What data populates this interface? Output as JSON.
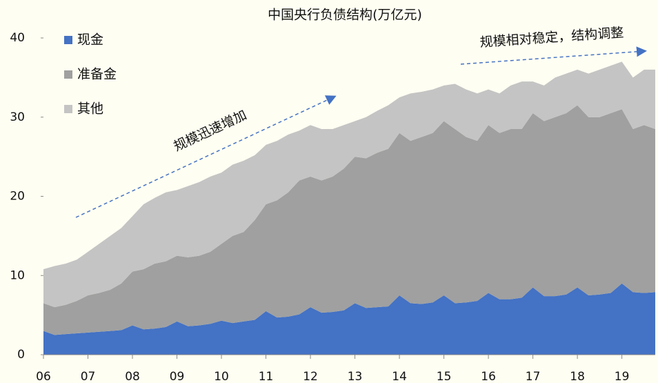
{
  "chart_data": {
    "type": "stacked_area",
    "title": "中国央行负债结构(万亿元)",
    "annotations": [
      "规模迅速增加",
      "规模相对稳定，结构调整"
    ],
    "x": [
      2006,
      2006.25,
      2006.5,
      2006.75,
      2007,
      2007.25,
      2007.5,
      2007.75,
      2008,
      2008.25,
      2008.5,
      2008.75,
      2009,
      2009.25,
      2009.5,
      2009.75,
      2010,
      2010.25,
      2010.5,
      2010.75,
      2011,
      2011.25,
      2011.5,
      2011.75,
      2012,
      2012.25,
      2012.5,
      2012.75,
      2013,
      2013.25,
      2013.5,
      2013.75,
      2014,
      2014.25,
      2014.5,
      2014.75,
      2015,
      2015.25,
      2015.5,
      2015.75,
      2016,
      2016.25,
      2016.5,
      2016.75,
      2017,
      2017.25,
      2017.5,
      2017.75,
      2018,
      2018.25,
      2018.5,
      2018.75,
      2019,
      2019.25,
      2019.5,
      2019.75
    ],
    "series": [
      {
        "name": "现金",
        "color": "#4472c4",
        "values": [
          3.0,
          2.5,
          2.6,
          2.7,
          2.8,
          2.9,
          3.0,
          3.1,
          3.7,
          3.2,
          3.3,
          3.5,
          4.2,
          3.6,
          3.7,
          3.9,
          4.3,
          4.0,
          4.2,
          4.4,
          5.5,
          4.7,
          4.8,
          5.1,
          6.0,
          5.3,
          5.4,
          5.6,
          6.5,
          5.9,
          6.0,
          6.1,
          7.5,
          6.5,
          6.4,
          6.6,
          7.5,
          6.5,
          6.6,
          6.8,
          7.8,
          7.0,
          7.0,
          7.2,
          8.5,
          7.4,
          7.4,
          7.6,
          8.5,
          7.5,
          7.6,
          7.8,
          9.0,
          7.9,
          7.8,
          7.9
        ]
      },
      {
        "name": "准备金",
        "color": "#a0a0a0",
        "values": [
          3.5,
          3.5,
          3.7,
          4.1,
          4.7,
          4.9,
          5.2,
          5.9,
          6.8,
          7.6,
          8.2,
          8.3,
          8.3,
          8.7,
          8.8,
          9.1,
          9.7,
          11.0,
          11.3,
          12.6,
          13.5,
          14.8,
          15.7,
          16.9,
          16.5,
          16.7,
          17.1,
          17.9,
          18.5,
          18.9,
          19.5,
          19.9,
          20.5,
          20.5,
          21.1,
          21.4,
          22.0,
          22.0,
          20.9,
          20.2,
          21.2,
          21.0,
          21.5,
          21.3,
          22.0,
          22.1,
          22.6,
          22.9,
          23.0,
          22.5,
          22.4,
          22.7,
          22.0,
          20.6,
          21.2,
          20.6
        ]
      },
      {
        "name": "其他",
        "color": "#c4c4c4",
        "values": [
          4.3,
          5.2,
          5.2,
          5.2,
          5.5,
          6.2,
          6.8,
          7.0,
          7.0,
          8.2,
          8.3,
          8.7,
          8.3,
          9.0,
          9.3,
          9.5,
          9.0,
          9.0,
          9.0,
          8.2,
          7.5,
          7.5,
          7.3,
          6.3,
          6.5,
          6.5,
          6.0,
          5.5,
          4.5,
          5.2,
          5.3,
          5.5,
          4.5,
          6.0,
          5.7,
          5.5,
          4.5,
          5.7,
          6.0,
          6.0,
          4.5,
          5.0,
          5.5,
          6.0,
          4.0,
          4.5,
          5.0,
          5.0,
          4.5,
          5.5,
          6.0,
          6.0,
          6.0,
          6.5,
          7.0,
          7.5
        ]
      }
    ],
    "xlim": [
      2006,
      2019.75
    ],
    "xticks": [
      {
        "value": 2006,
        "label": "06"
      },
      {
        "value": 2007,
        "label": "07"
      },
      {
        "value": 2008,
        "label": "08"
      },
      {
        "value": 2009,
        "label": "09"
      },
      {
        "value": 2010,
        "label": "10"
      },
      {
        "value": 2011,
        "label": "11"
      },
      {
        "value": 2012,
        "label": "12"
      },
      {
        "value": 2013,
        "label": "13"
      },
      {
        "value": 2014,
        "label": "14"
      },
      {
        "value": 2015,
        "label": "15"
      },
      {
        "value": 2016,
        "label": "16"
      },
      {
        "value": 2017,
        "label": "17"
      },
      {
        "value": 2018,
        "label": "18"
      },
      {
        "value": 2019,
        "label": "19"
      }
    ],
    "ylim": [
      0,
      40
    ],
    "yticks": [
      0,
      10,
      20,
      30,
      40
    ],
    "legend": "upper left"
  }
}
